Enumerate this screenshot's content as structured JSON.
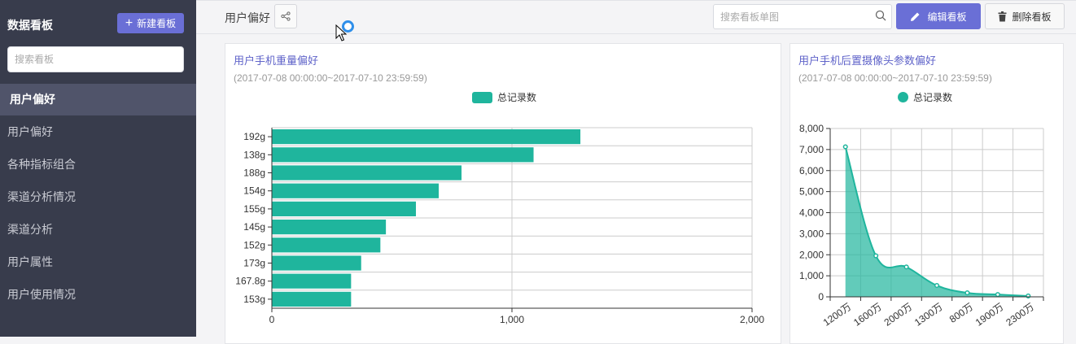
{
  "sidebar": {
    "title": "数据看板",
    "new_button": "新建看板",
    "search_placeholder": "搜索看板",
    "items": [
      {
        "label": "用户偏好",
        "active": true
      },
      {
        "label": "用户偏好",
        "active": false
      },
      {
        "label": "各种指标组合",
        "active": false
      },
      {
        "label": "渠道分析情况",
        "active": false
      },
      {
        "label": "渠道分析",
        "active": false
      },
      {
        "label": "用户属性",
        "active": false
      },
      {
        "label": "用户使用情况",
        "active": false
      }
    ]
  },
  "header": {
    "board_title": "用户偏好",
    "search_placeholder": "搜索看板单图",
    "edit_button": "编辑看板",
    "delete_button": "删除看板"
  },
  "colors": {
    "accent": "#6a6fd6",
    "series": "#1fb59d",
    "sidebar": "#383c4c"
  },
  "chart_data": [
    {
      "type": "bar",
      "orientation": "horizontal",
      "title": "用户手机重量偏好",
      "subtitle": "(2017-07-08 00:00:00~2017-07-10 23:59:59)",
      "legend": "top-center",
      "categories": [
        "192g",
        "138g",
        "188g",
        "154g",
        "155g",
        "145g",
        "152g",
        "173g",
        "167.8g",
        "153g"
      ],
      "series": [
        {
          "name": "总记录数",
          "values": [
            1285,
            1090,
            790,
            695,
            600,
            475,
            452,
            372,
            330,
            330
          ]
        }
      ],
      "xlim": [
        0,
        2000
      ],
      "xticks": [
        "0",
        "1,000",
        "2,000"
      ],
      "grid": true
    },
    {
      "type": "area",
      "title": "用户手机后置摄像头参数偏好",
      "subtitle": "(2017-07-08 00:00:00~2017-07-10 23:59:59)",
      "legend": "top-center",
      "categories": [
        "1200万",
        "1600万",
        "2000万",
        "1300万",
        "800万",
        "1900万",
        "2300万"
      ],
      "series": [
        {
          "name": "总记录数",
          "values": [
            7130,
            1950,
            1420,
            540,
            190,
            110,
            40
          ]
        }
      ],
      "ylim": [
        0,
        8000
      ],
      "yticks": [
        "0",
        "1,000",
        "2,000",
        "3,000",
        "4,000",
        "5,000",
        "6,000",
        "7,000",
        "8,000"
      ],
      "grid": true
    }
  ]
}
